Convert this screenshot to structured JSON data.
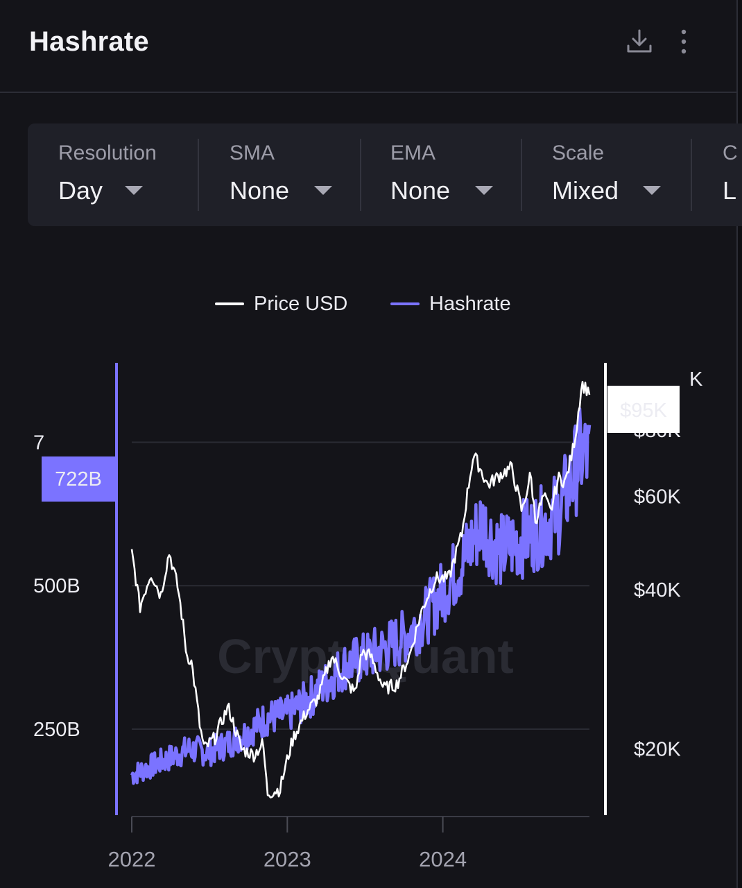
{
  "header": {
    "title": "Hashrate",
    "download_icon": "download-icon",
    "more_icon": "more-vertical-icon"
  },
  "controls": [
    {
      "label": "Resolution",
      "value": "Day"
    },
    {
      "label": "SMA",
      "value": "None"
    },
    {
      "label": "EMA",
      "value": "None"
    },
    {
      "label": "Scale",
      "value": "Mixed"
    },
    {
      "label": "C",
      "value": "L"
    }
  ],
  "colors": {
    "background": "#141419",
    "price": "#ffffff",
    "hashrate": "#7b73ff",
    "panel": "#1f2028"
  },
  "watermark": "CryptoQuant",
  "chart_data": {
    "type": "line",
    "legend": [
      "Price USD",
      "Hashrate"
    ],
    "legend_placement": "top-center",
    "x_ticks": [
      "2022",
      "2023",
      "2024"
    ],
    "x_range": [
      "2022-01-01",
      "2024-12-10"
    ],
    "left_axis": {
      "ticks": [
        "250B",
        "500B",
        "7"
      ],
      "range": [
        100,
        880
      ],
      "unit": "EH/s (shown as B)"
    },
    "right_axis": {
      "ticks": [
        "$20K",
        "$40K",
        "$60K",
        "$80K",
        "K"
      ],
      "scale": "log",
      "range": [
        15000,
        105000
      ]
    },
    "current_labels": {
      "hashrate": "722B",
      "price": "$95K"
    },
    "series": [
      {
        "name": "Price USD",
        "axis": "right",
        "x": [
          "2022-01-01",
          "2022-01-20",
          "2022-02-15",
          "2022-03-10",
          "2022-03-30",
          "2022-04-20",
          "2022-05-10",
          "2022-05-20",
          "2022-06-10",
          "2022-06-20",
          "2022-07-15",
          "2022-08-15",
          "2022-09-15",
          "2022-10-15",
          "2022-11-05",
          "2022-11-15",
          "2022-12-15",
          "2023-01-15",
          "2023-02-15",
          "2023-03-15",
          "2023-04-15",
          "2023-05-15",
          "2023-06-10",
          "2023-06-25",
          "2023-07-15",
          "2023-08-15",
          "2023-09-15",
          "2023-10-15",
          "2023-11-15",
          "2023-12-15",
          "2024-01-15",
          "2024-02-15",
          "2024-03-13",
          "2024-04-15",
          "2024-05-15",
          "2024-06-10",
          "2024-07-05",
          "2024-07-25",
          "2024-08-05",
          "2024-08-25",
          "2024-09-10",
          "2024-09-28",
          "2024-10-15",
          "2024-10-30",
          "2024-11-10",
          "2024-11-22",
          "2024-12-01",
          "2024-12-10"
        ],
        "values": [
          47000,
          37000,
          43000,
          39000,
          47000,
          40000,
          30000,
          29500,
          22000,
          20000,
          21000,
          24000,
          20000,
          19500,
          20500,
          16500,
          16800,
          21000,
          23500,
          25000,
          30000,
          27000,
          25500,
          30500,
          30000,
          26000,
          26500,
          30000,
          37000,
          42000,
          42000,
          51000,
          72000,
          63000,
          66000,
          68000,
          56000,
          66000,
          54000,
          60000,
          56000,
          65000,
          64000,
          72000,
          81000,
          98000,
          96000,
          95000
        ]
      },
      {
        "name": "Hashrate",
        "axis": "left",
        "x": [
          "2022-01-01",
          "2022-02-15",
          "2022-04-01",
          "2022-05-15",
          "2022-07-01",
          "2022-08-15",
          "2022-10-01",
          "2022-11-15",
          "2023-01-01",
          "2023-02-15",
          "2023-04-01",
          "2023-05-15",
          "2023-07-01",
          "2023-08-15",
          "2023-10-01",
          "2023-11-15",
          "2024-01-01",
          "2024-02-15",
          "2024-04-01",
          "2024-04-25",
          "2024-05-15",
          "2024-07-01",
          "2024-08-15",
          "2024-10-01",
          "2024-11-01",
          "2024-11-20",
          "2024-12-10"
        ],
        "values": [
          170,
          185,
          200,
          215,
          210,
          225,
          245,
          270,
          275,
          300,
          330,
          360,
          375,
          390,
          410,
          440,
          490,
          540,
          610,
          580,
          560,
          580,
          600,
          630,
          690,
          730,
          722
        ]
      }
    ]
  }
}
